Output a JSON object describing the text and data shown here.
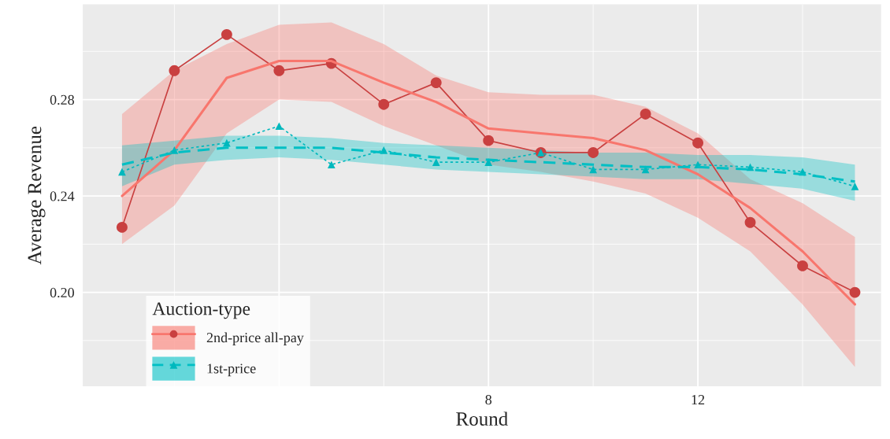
{
  "chart_data": {
    "type": "line",
    "xlabel": "Round",
    "ylabel": "Average Revenue",
    "legend_title": "Auction-type",
    "legend": "bottom left",
    "grid": true,
    "xlim": [
      0.25,
      15.5
    ],
    "xticks": [
      {
        "value": 4,
        "label": null
      },
      8,
      12
    ],
    "ylim": [
      0.161,
      0.3195
    ],
    "yticks": [
      {
        "value": 0.2,
        "label": "0.20"
      },
      0.24,
      0.28
    ],
    "x": [
      1,
      2,
      3,
      4,
      5,
      6,
      7,
      8,
      9,
      10,
      11,
      12,
      13,
      14,
      15
    ],
    "series": [
      {
        "name": "2nd-price all-pay",
        "color": "#c94040",
        "marker": "circle",
        "line_style": "solid",
        "values": [
          0.227,
          0.292,
          0.307,
          0.292,
          0.295,
          0.278,
          0.287,
          0.263,
          0.258,
          0.258,
          0.274,
          0.262,
          0.229,
          0.211,
          0.2
        ]
      },
      {
        "color": "#f8766d",
        "line_style": "solid",
        "values": [
          0.24,
          0.259,
          0.289,
          0.296,
          0.296,
          0.287,
          0.279,
          0.268,
          0.266,
          0.264,
          0.259,
          0.249,
          0.235,
          0.217,
          0.195
        ],
        "lower": [
          0.22,
          0.236,
          0.266,
          0.28,
          0.279,
          0.269,
          0.261,
          0.253,
          0.25,
          0.246,
          0.241,
          0.231,
          0.217,
          0.195,
          0.169
        ],
        "upper": [
          0.274,
          0.292,
          0.303,
          0.311,
          0.312,
          0.303,
          0.29,
          0.283,
          0.282,
          0.282,
          0.277,
          0.266,
          0.247,
          0.237,
          0.223
        ]
      },
      {
        "name": "1st-price",
        "color": "#00b8bd",
        "marker": "triangle",
        "line_style": "dotted",
        "values": [
          0.25,
          0.259,
          0.262,
          0.269,
          0.253,
          0.259,
          0.254,
          0.254,
          0.258,
          0.251,
          0.251,
          0.253,
          0.252,
          0.25,
          0.244
        ]
      },
      {
        "color": "#00bfc4",
        "line_style": "dashed",
        "values": [
          0.253,
          0.258,
          0.26,
          0.26,
          0.26,
          0.258,
          0.256,
          0.255,
          0.254,
          0.253,
          0.252,
          0.252,
          0.251,
          0.249,
          0.246
        ],
        "lower": [
          0.244,
          0.253,
          0.255,
          0.256,
          0.255,
          0.253,
          0.251,
          0.25,
          0.249,
          0.248,
          0.247,
          0.247,
          0.245,
          0.243,
          0.238
        ],
        "upper": [
          0.261,
          0.263,
          0.265,
          0.265,
          0.264,
          0.262,
          0.261,
          0.26,
          0.259,
          0.258,
          0.258,
          0.257,
          0.257,
          0.256,
          0.253
        ]
      }
    ]
  }
}
